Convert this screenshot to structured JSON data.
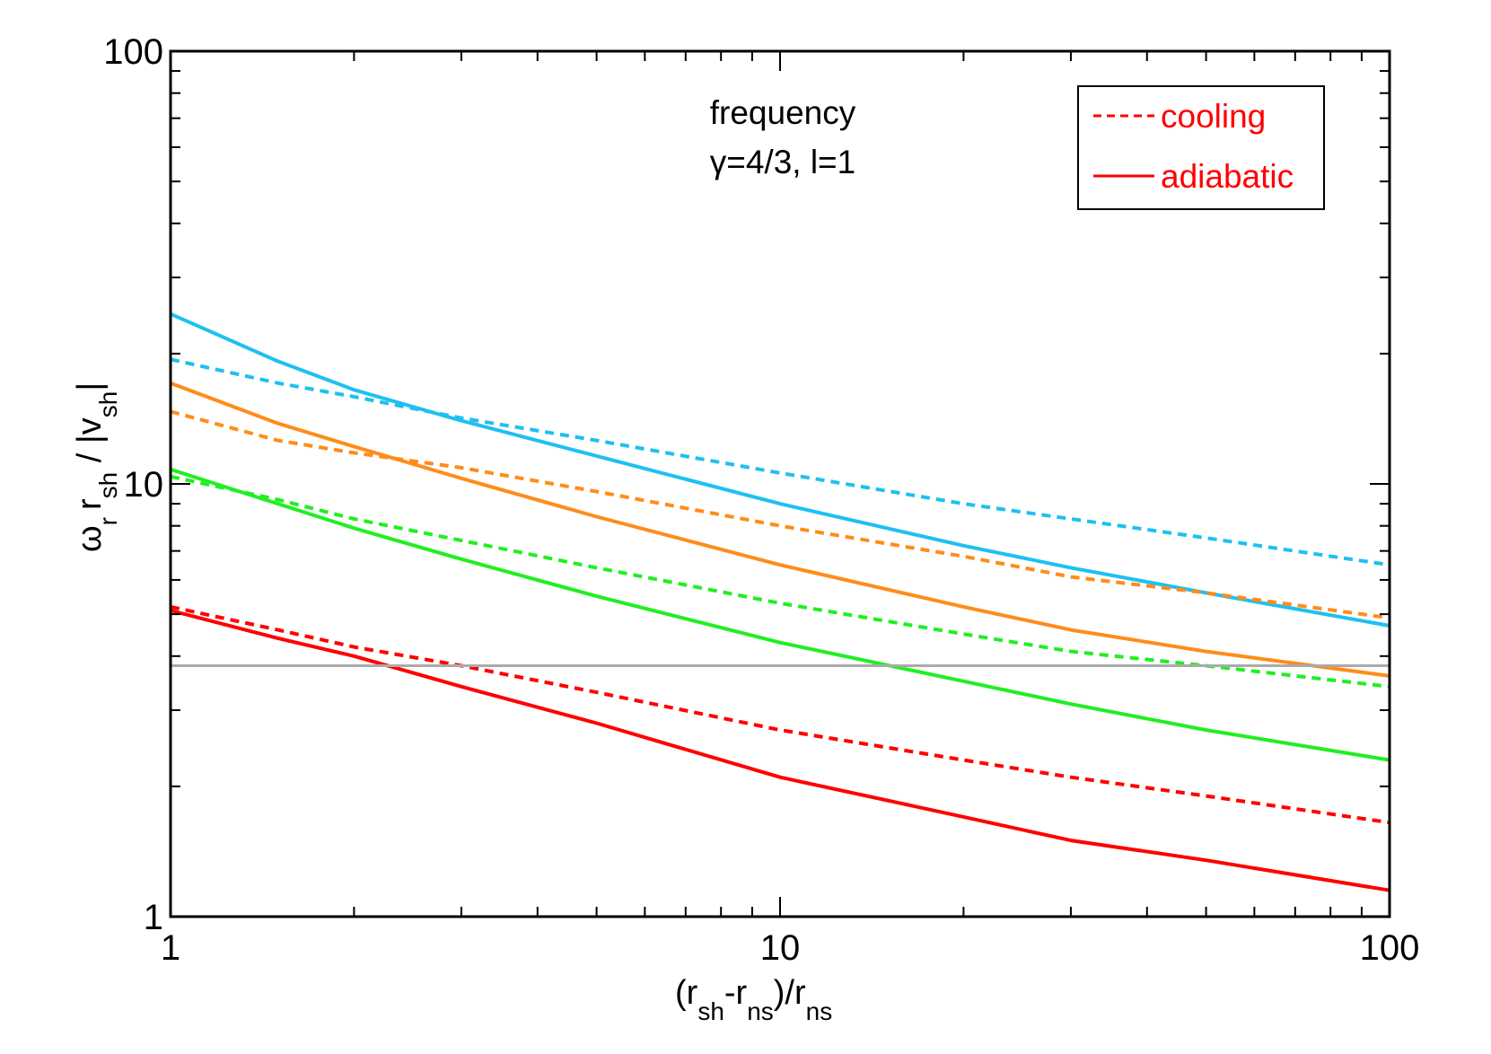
{
  "chart_data": {
    "type": "line",
    "xscale": "log",
    "yscale": "log",
    "xlim": [
      1,
      100
    ],
    "ylim": [
      1,
      100
    ],
    "grid": false,
    "legend_position": "top-right",
    "xlabel_parts": [
      "(r",
      "sh",
      "-r",
      "ns",
      ")/r",
      "ns"
    ],
    "ylabel_parts": [
      "ω",
      "r",
      "r",
      "sh",
      " / |v",
      "sh",
      "|"
    ],
    "annotations": [
      "frequency",
      "γ=4/3, l=1"
    ],
    "xticks": [
      {
        "value": 1,
        "label": "1"
      },
      {
        "value": 10,
        "label": "10"
      },
      {
        "value": 100,
        "label": "100"
      }
    ],
    "yticks": [
      {
        "value": 1,
        "label": "1"
      },
      {
        "value": 10,
        "label": "10"
      },
      {
        "value": 100,
        "label": "100"
      }
    ],
    "legend": [
      {
        "label": "cooling",
        "style": "dashed",
        "color": "#ff0000"
      },
      {
        "label": "adiabatic",
        "style": "solid",
        "color": "#ff0000"
      }
    ],
    "series": [
      {
        "color": "#1ec0f0",
        "style": "solid",
        "x": [
          1,
          1.5,
          2,
          3,
          5,
          10,
          20,
          30,
          50,
          100
        ],
        "y": [
          24.7,
          19.2,
          16.5,
          14.0,
          11.6,
          9.0,
          7.2,
          6.4,
          5.6,
          4.7
        ]
      },
      {
        "color": "#1ec0f0",
        "style": "dashed",
        "x": [
          1,
          1.5,
          2,
          3,
          5,
          10,
          20,
          30,
          50,
          100
        ],
        "y": [
          19.4,
          17.1,
          15.9,
          14.2,
          12.6,
          10.6,
          9.0,
          8.3,
          7.5,
          6.5
        ]
      },
      {
        "color": "#ff8c1a",
        "style": "solid",
        "x": [
          1,
          1.5,
          2,
          3,
          5,
          10,
          20,
          30,
          50,
          100
        ],
        "y": [
          17.1,
          13.8,
          12.2,
          10.3,
          8.4,
          6.5,
          5.2,
          4.6,
          4.1,
          3.6
        ]
      },
      {
        "color": "#ff8c1a",
        "style": "dashed",
        "x": [
          1,
          1.5,
          2,
          3,
          5,
          10,
          20,
          30,
          50,
          100
        ],
        "y": [
          14.7,
          12.6,
          11.8,
          10.9,
          9.6,
          8.0,
          6.8,
          6.1,
          5.6,
          4.9
        ]
      },
      {
        "color": "#22ee22",
        "style": "solid",
        "x": [
          1,
          1.5,
          2,
          3,
          5,
          10,
          20,
          30,
          50,
          100
        ],
        "y": [
          10.8,
          9.0,
          7.9,
          6.7,
          5.5,
          4.3,
          3.5,
          3.1,
          2.7,
          2.3
        ]
      },
      {
        "color": "#22ee22",
        "style": "dashed",
        "x": [
          1,
          1.5,
          2,
          3,
          5,
          10,
          20,
          30,
          50,
          100
        ],
        "y": [
          10.4,
          9.2,
          8.3,
          7.4,
          6.4,
          5.3,
          4.5,
          4.1,
          3.8,
          3.4
        ]
      },
      {
        "color": "#ff0000",
        "style": "solid",
        "x": [
          1,
          1.5,
          2,
          3,
          5,
          10,
          20,
          30,
          50,
          100
        ],
        "y": [
          5.1,
          4.4,
          4.0,
          3.4,
          2.8,
          2.1,
          1.7,
          1.5,
          1.35,
          1.15
        ]
      },
      {
        "color": "#ff0000",
        "style": "dashed",
        "x": [
          1,
          1.5,
          2,
          3,
          5,
          10,
          20,
          30,
          50,
          100
        ],
        "y": [
          5.2,
          4.6,
          4.2,
          3.8,
          3.3,
          2.7,
          2.3,
          2.1,
          1.9,
          1.65
        ]
      },
      {
        "color": "#aaaaaa",
        "style": "solid",
        "x": [
          1,
          100
        ],
        "y": [
          3.8,
          3.8
        ]
      }
    ]
  }
}
